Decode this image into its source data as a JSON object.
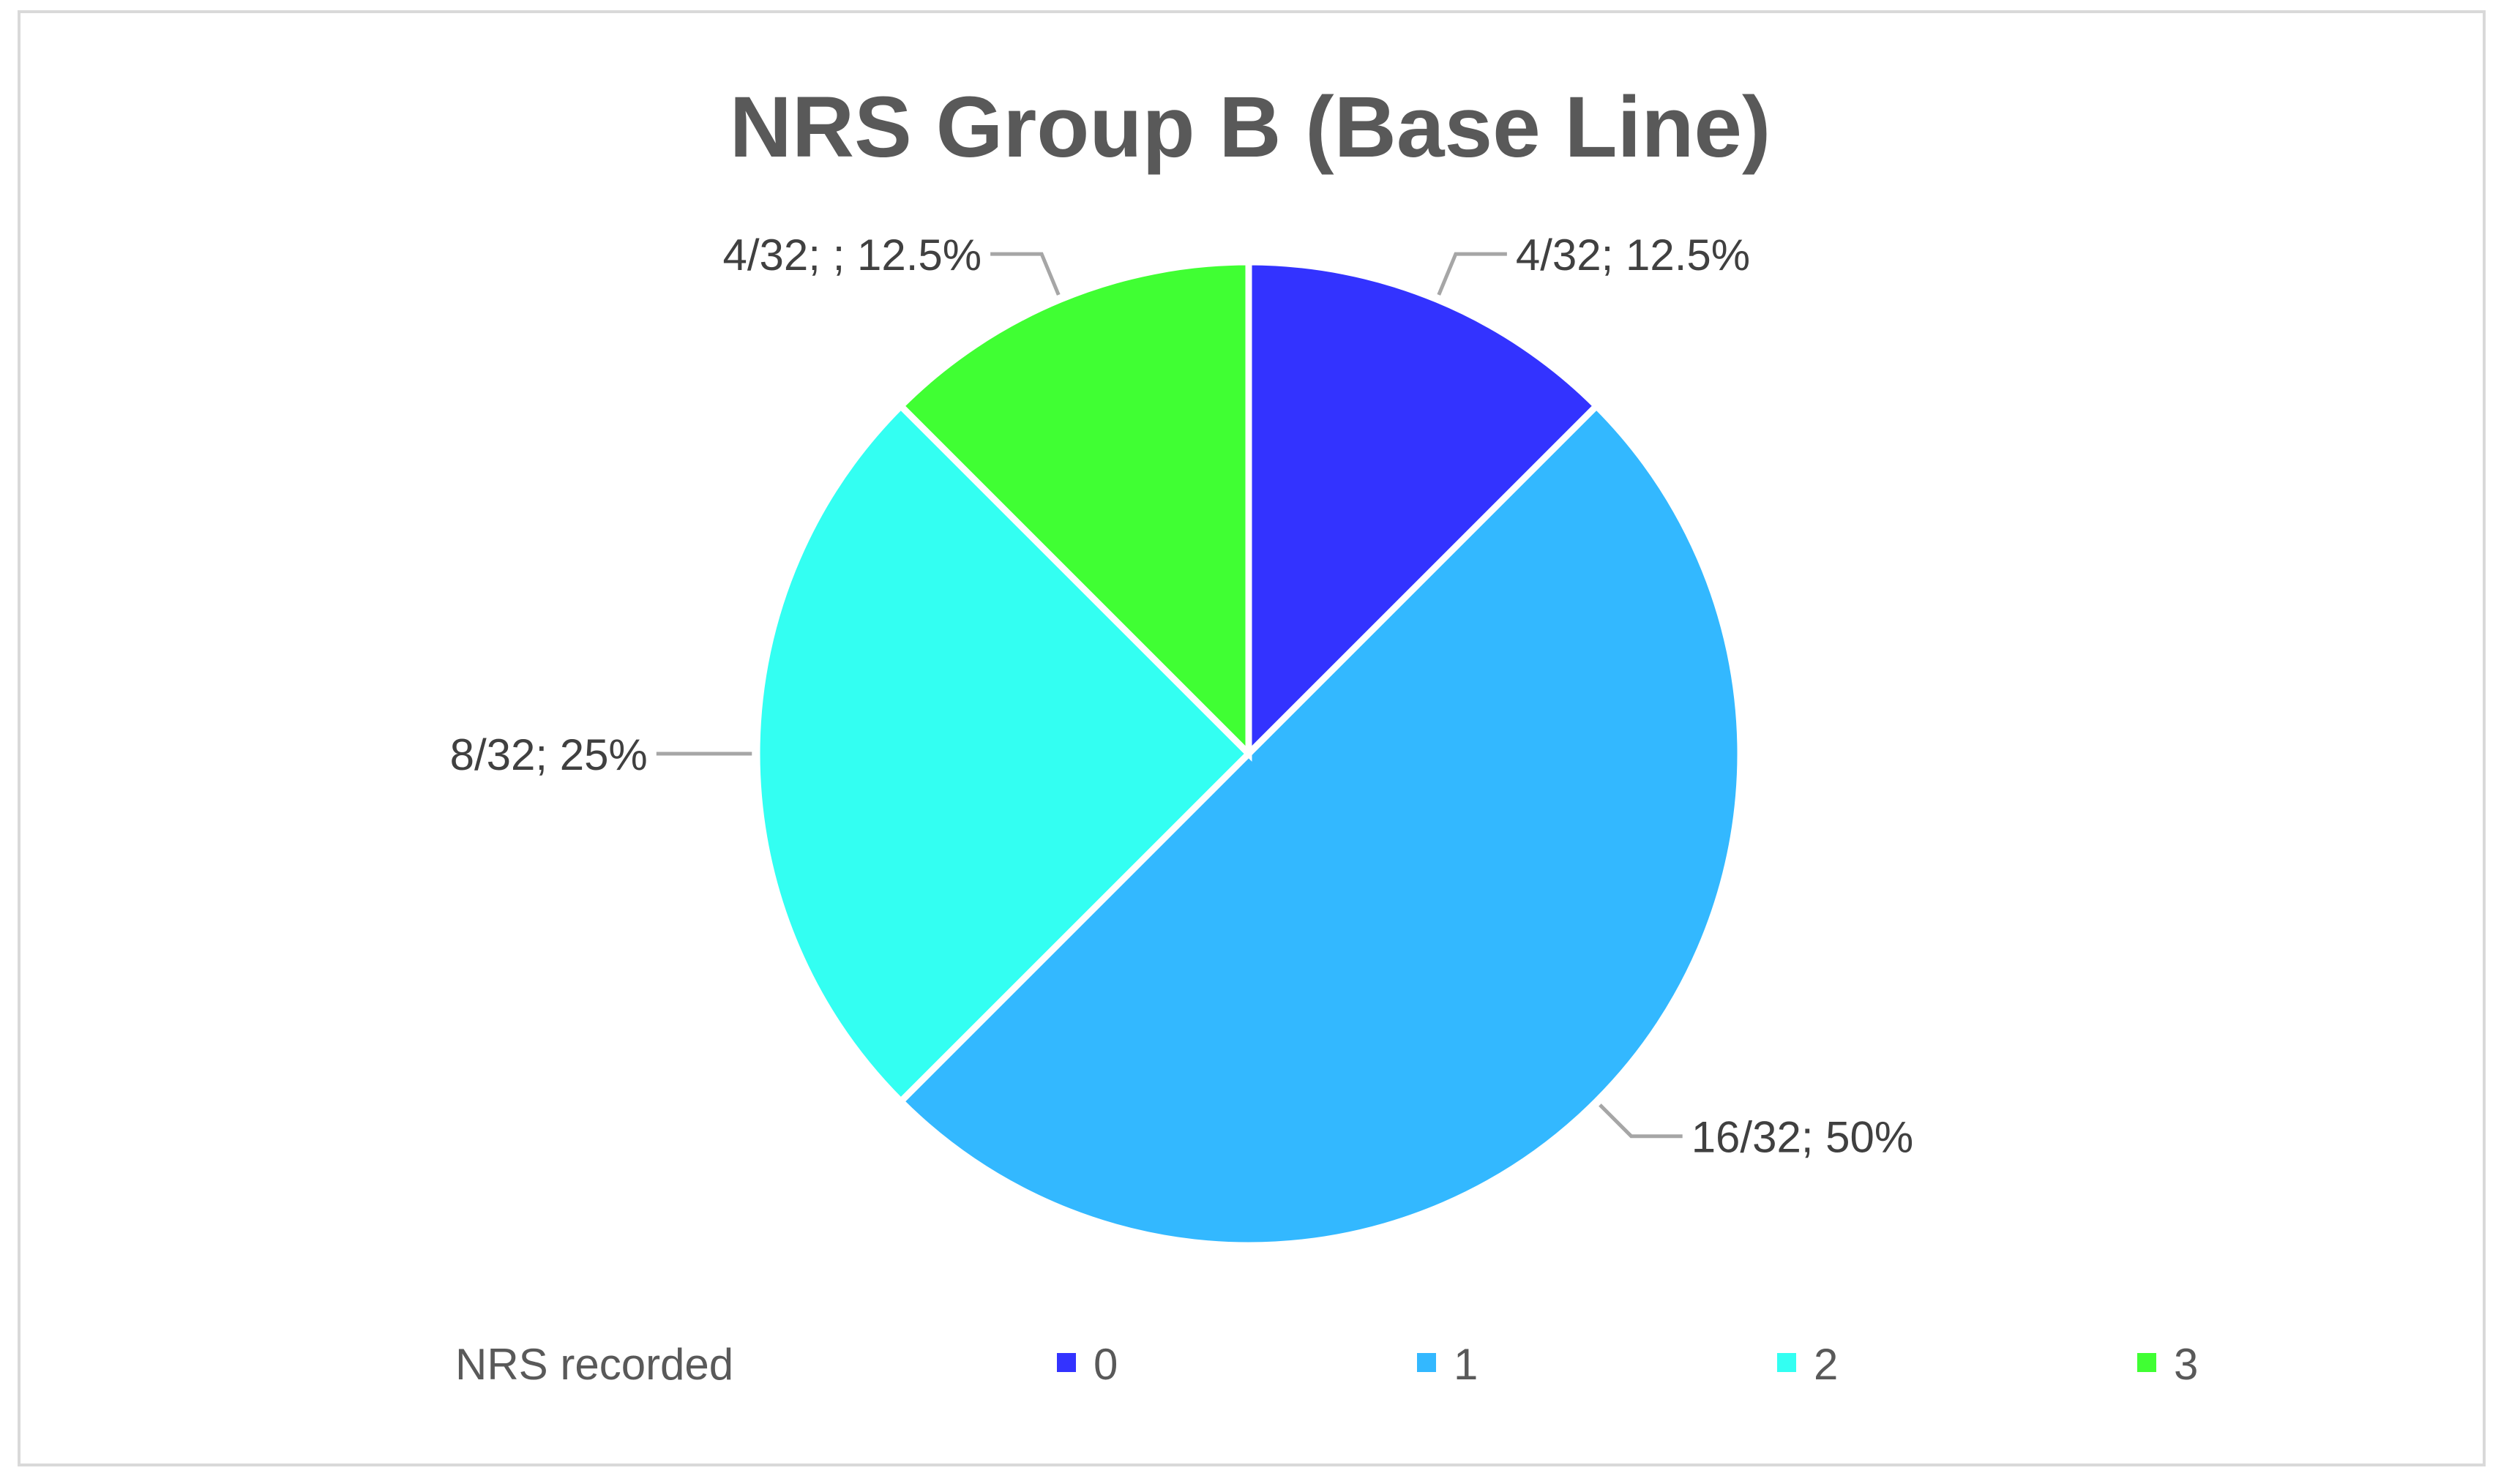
{
  "chart_data": {
    "type": "pie",
    "title": "NRS Group B (Base Line)",
    "legend_title": "NRS recorded",
    "legend_position": "bottom",
    "start_angle_deg": 0,
    "direction": "clockwise",
    "slices": [
      {
        "category": "0",
        "value": 4,
        "label": "4/32; 12.5%",
        "color": "#3333FF"
      },
      {
        "category": "1",
        "value": 16,
        "label": "16/32; 50%",
        "color": "#33B8FF"
      },
      {
        "category": "2",
        "value": 8,
        "label": "8/32; 25%",
        "color": "#33FFF2"
      },
      {
        "category": "3",
        "value": 4,
        "label": "4/32; ; 12.5%",
        "color": "#40FF33"
      }
    ],
    "total": 32
  }
}
